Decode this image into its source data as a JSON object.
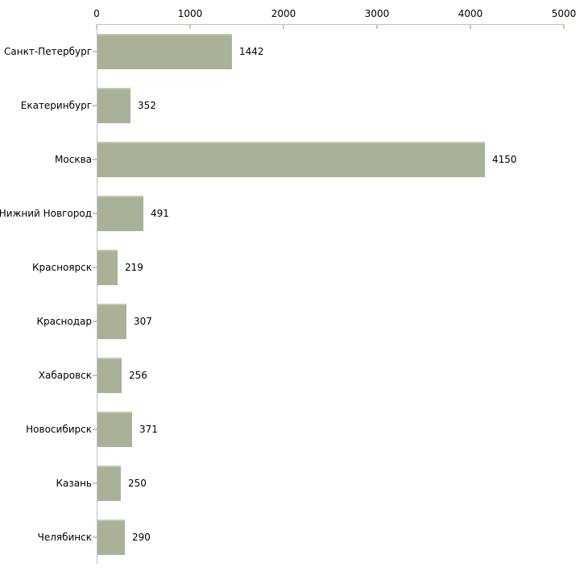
{
  "chart_data": {
    "type": "bar",
    "orientation": "horizontal",
    "title": "",
    "xlabel": "",
    "ylabel": "",
    "categories": [
      "Санкт-Петербург",
      "Екатеринбург",
      "Москва",
      "Нижний Новгород",
      "Красноярск",
      "Краснодар",
      "Хабаровск",
      "Новосибирск",
      "Казань",
      "Челябинск"
    ],
    "values": [
      1442,
      352,
      4150,
      491,
      219,
      307,
      256,
      371,
      250,
      290
    ],
    "value_labels": [
      "1442",
      "352",
      "4150",
      "491",
      "219",
      "307",
      "256",
      "371",
      "250",
      "290"
    ],
    "xlim": [
      0,
      5000
    ],
    "x_ticks": [
      0,
      1000,
      2000,
      3000,
      4000,
      5000
    ],
    "x_tick_labels": [
      "0",
      "1000",
      "2000",
      "3000",
      "4000",
      "5000"
    ],
    "axis_position": "top",
    "grid": false,
    "legend": false
  },
  "colors": {
    "background": "#ffffff",
    "bar_fill": "#aab199",
    "bar_top_edge": "#c3c8ae",
    "axis_line": "#c0c0c0",
    "tick_mark": "#cbcba4",
    "text": "#000000"
  }
}
